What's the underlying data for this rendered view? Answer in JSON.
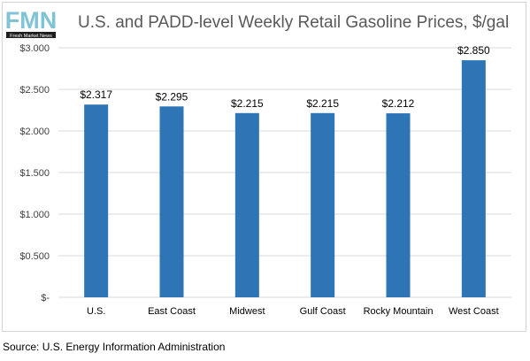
{
  "logo": {
    "text": "FMN",
    "subtext": "Fresh Market News",
    "icon": "fmn-logo"
  },
  "chart_data": {
    "type": "bar",
    "title": "U.S. and PADD-level Weekly Retail Gasoline Prices, $/gal",
    "categories": [
      "U.S.",
      "East Coast",
      "Midwest",
      "Gulf Coast",
      "Rocky Mountain",
      "West Coast"
    ],
    "values": [
      2.317,
      2.295,
      2.215,
      2.215,
      2.212,
      2.85
    ],
    "data_labels": [
      "$2.317",
      "$2.295",
      "$2.215",
      "$2.215",
      "$2.212",
      "$2.850"
    ],
    "ylim": [
      0,
      3.0
    ],
    "yticks": [
      0,
      0.5,
      1.0,
      1.5,
      2.0,
      2.5,
      3.0
    ],
    "ytick_labels": [
      "$-",
      "$0.500",
      "$1.000",
      "$1.500",
      "$2.000",
      "$2.500",
      "$3.000"
    ],
    "bar_color": "#2e75b6",
    "grid": true,
    "legend": "none"
  },
  "source": "Source: U.S. Energy Information Administration"
}
